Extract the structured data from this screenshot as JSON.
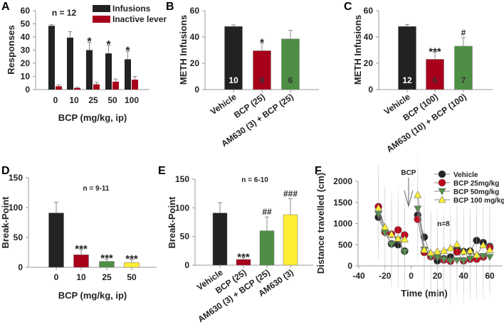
{
  "chart_data": [
    {
      "panel": "A",
      "type": "bar",
      "grouped": true,
      "categories": [
        "0",
        "10",
        "25",
        "50",
        "100"
      ],
      "xlabel": "BCP (mg/kg, ip)",
      "ylabel": "Responses",
      "ylim": [
        0,
        60
      ],
      "yticks": [
        0,
        10,
        20,
        30,
        40,
        50,
        60
      ],
      "annotation": "n = 12",
      "legend_position": "top-right",
      "series": [
        {
          "name": "Infusions",
          "color": "#222222",
          "values": [
            48.5,
            39.5,
            30,
            27.5,
            23
          ],
          "errors": [
            1,
            4.5,
            6,
            6,
            6
          ],
          "marks": [
            "",
            "",
            "*",
            "*",
            "*"
          ]
        },
        {
          "name": "Inactive lever",
          "color": "#a8001a",
          "values": [
            2.5,
            1.2,
            4,
            6,
            7.5
          ],
          "errors": [
            1,
            0.5,
            1.5,
            2,
            2.5
          ],
          "marks": [
            "",
            "",
            "",
            "",
            ""
          ]
        }
      ]
    },
    {
      "panel": "B",
      "type": "bar",
      "categories": [
        "Vehicle",
        "BCP (25)",
        "AM630 (3) + BCP (25)"
      ],
      "ylabel": "METH Infusions",
      "ylim": [
        0,
        60
      ],
      "yticks": [
        0,
        20,
        40,
        60
      ],
      "values": [
        48,
        29.5,
        38.5
      ],
      "errors": [
        1.2,
        6,
        6.5
      ],
      "colors": [
        "#222222",
        "#a8001a",
        "#4f8f45"
      ],
      "n_labels": [
        "10",
        "9",
        "6"
      ],
      "marks": [
        "",
        "*",
        ""
      ]
    },
    {
      "panel": "C",
      "type": "bar",
      "categories": [
        "Vehicle",
        "BCP (100)",
        "AM630 (10) + BCP (100)"
      ],
      "ylabel": "METH Infusions",
      "ylim": [
        0,
        60
      ],
      "yticks": [
        0,
        20,
        40,
        60
      ],
      "values": [
        48,
        23,
        33
      ],
      "errors": [
        1.5,
        5.5,
        6.5
      ],
      "colors": [
        "#222222",
        "#a8001a",
        "#4f8f45"
      ],
      "n_labels": [
        "12",
        "6",
        "7"
      ],
      "marks": [
        "",
        "***",
        "#"
      ]
    },
    {
      "panel": "D",
      "type": "bar",
      "categories": [
        "0",
        "10",
        "25",
        "50"
      ],
      "xlabel": "BCP (mg/kg, ip)",
      "ylabel": "Break-Point",
      "ylim": [
        0,
        150
      ],
      "yticks": [
        0,
        50,
        100,
        150
      ],
      "values": [
        91,
        21,
        10,
        8
      ],
      "errors": [
        18,
        9,
        4,
        5
      ],
      "colors": [
        "#222222",
        "#a8001a",
        "#4f8f45",
        "#ffee33"
      ],
      "marks": [
        "",
        "***",
        "***",
        "***"
      ],
      "annotation": "n = 9-11"
    },
    {
      "panel": "E",
      "type": "bar",
      "categories": [
        "Vehicle",
        "BCP (25)",
        "AM630 (3) + BCP (25)",
        "AM630 (3)"
      ],
      "ylabel": "Break-Point",
      "ylim": [
        0,
        150
      ],
      "yticks": [
        0,
        50,
        100,
        150
      ],
      "values": [
        91,
        10,
        60,
        88
      ],
      "errors": [
        18,
        3,
        24,
        28
      ],
      "colors": [
        "#222222",
        "#a8001a",
        "#4f8f45",
        "#ffee33"
      ],
      "marks": [
        "",
        "***",
        "##",
        "###"
      ],
      "annotation": "n = 6-10"
    },
    {
      "panel": "F",
      "type": "line",
      "xlabel": "Time (min)",
      "ylabel": "Distance travelled (cm)",
      "xlim": [
        -40,
        60
      ],
      "xticks": [
        -40,
        -20,
        0,
        20,
        40,
        60
      ],
      "ylim": [
        0,
        2000
      ],
      "yticks": [
        0,
        500,
        1000,
        1500,
        2000
      ],
      "x": [
        -25,
        -20,
        -15,
        -10,
        -5,
        5,
        10,
        15,
        20,
        25,
        30,
        35,
        40,
        45,
        50,
        55,
        60
      ],
      "break_after_index": 4,
      "arrow_label": "BCP",
      "arrow_x": -2,
      "annotation": "n=8",
      "legend_position": "top-right",
      "series": [
        {
          "name": "Vehicle",
          "marker": "circle",
          "color": "#222222",
          "values": [
            1150,
            800,
            520,
            500,
            350,
            1200,
            680,
            230,
            120,
            170,
            210,
            400,
            340,
            350,
            600,
            550,
            460
          ]
        },
        {
          "name": "BCP 25mg/kg",
          "marker": "circle",
          "color": "#c0001a",
          "values": [
            1400,
            800,
            750,
            850,
            730,
            1100,
            320,
            220,
            230,
            140,
            110,
            330,
            120,
            160,
            160,
            210,
            430
          ]
        },
        {
          "name": "BCP 50mg/kg",
          "marker": "triangle-down",
          "color": "#4f8f45",
          "values": [
            1220,
            780,
            510,
            620,
            330,
            1350,
            380,
            220,
            200,
            150,
            110,
            130,
            120,
            170,
            220,
            230,
            210
          ]
        },
        {
          "name": "BCP 100 mg/kg",
          "marker": "triangle-up",
          "color": "#ffee33",
          "values": [
            1370,
            920,
            750,
            650,
            630,
            1680,
            380,
            310,
            340,
            360,
            420,
            510,
            340,
            360,
            260,
            490,
            380
          ]
        }
      ]
    }
  ]
}
